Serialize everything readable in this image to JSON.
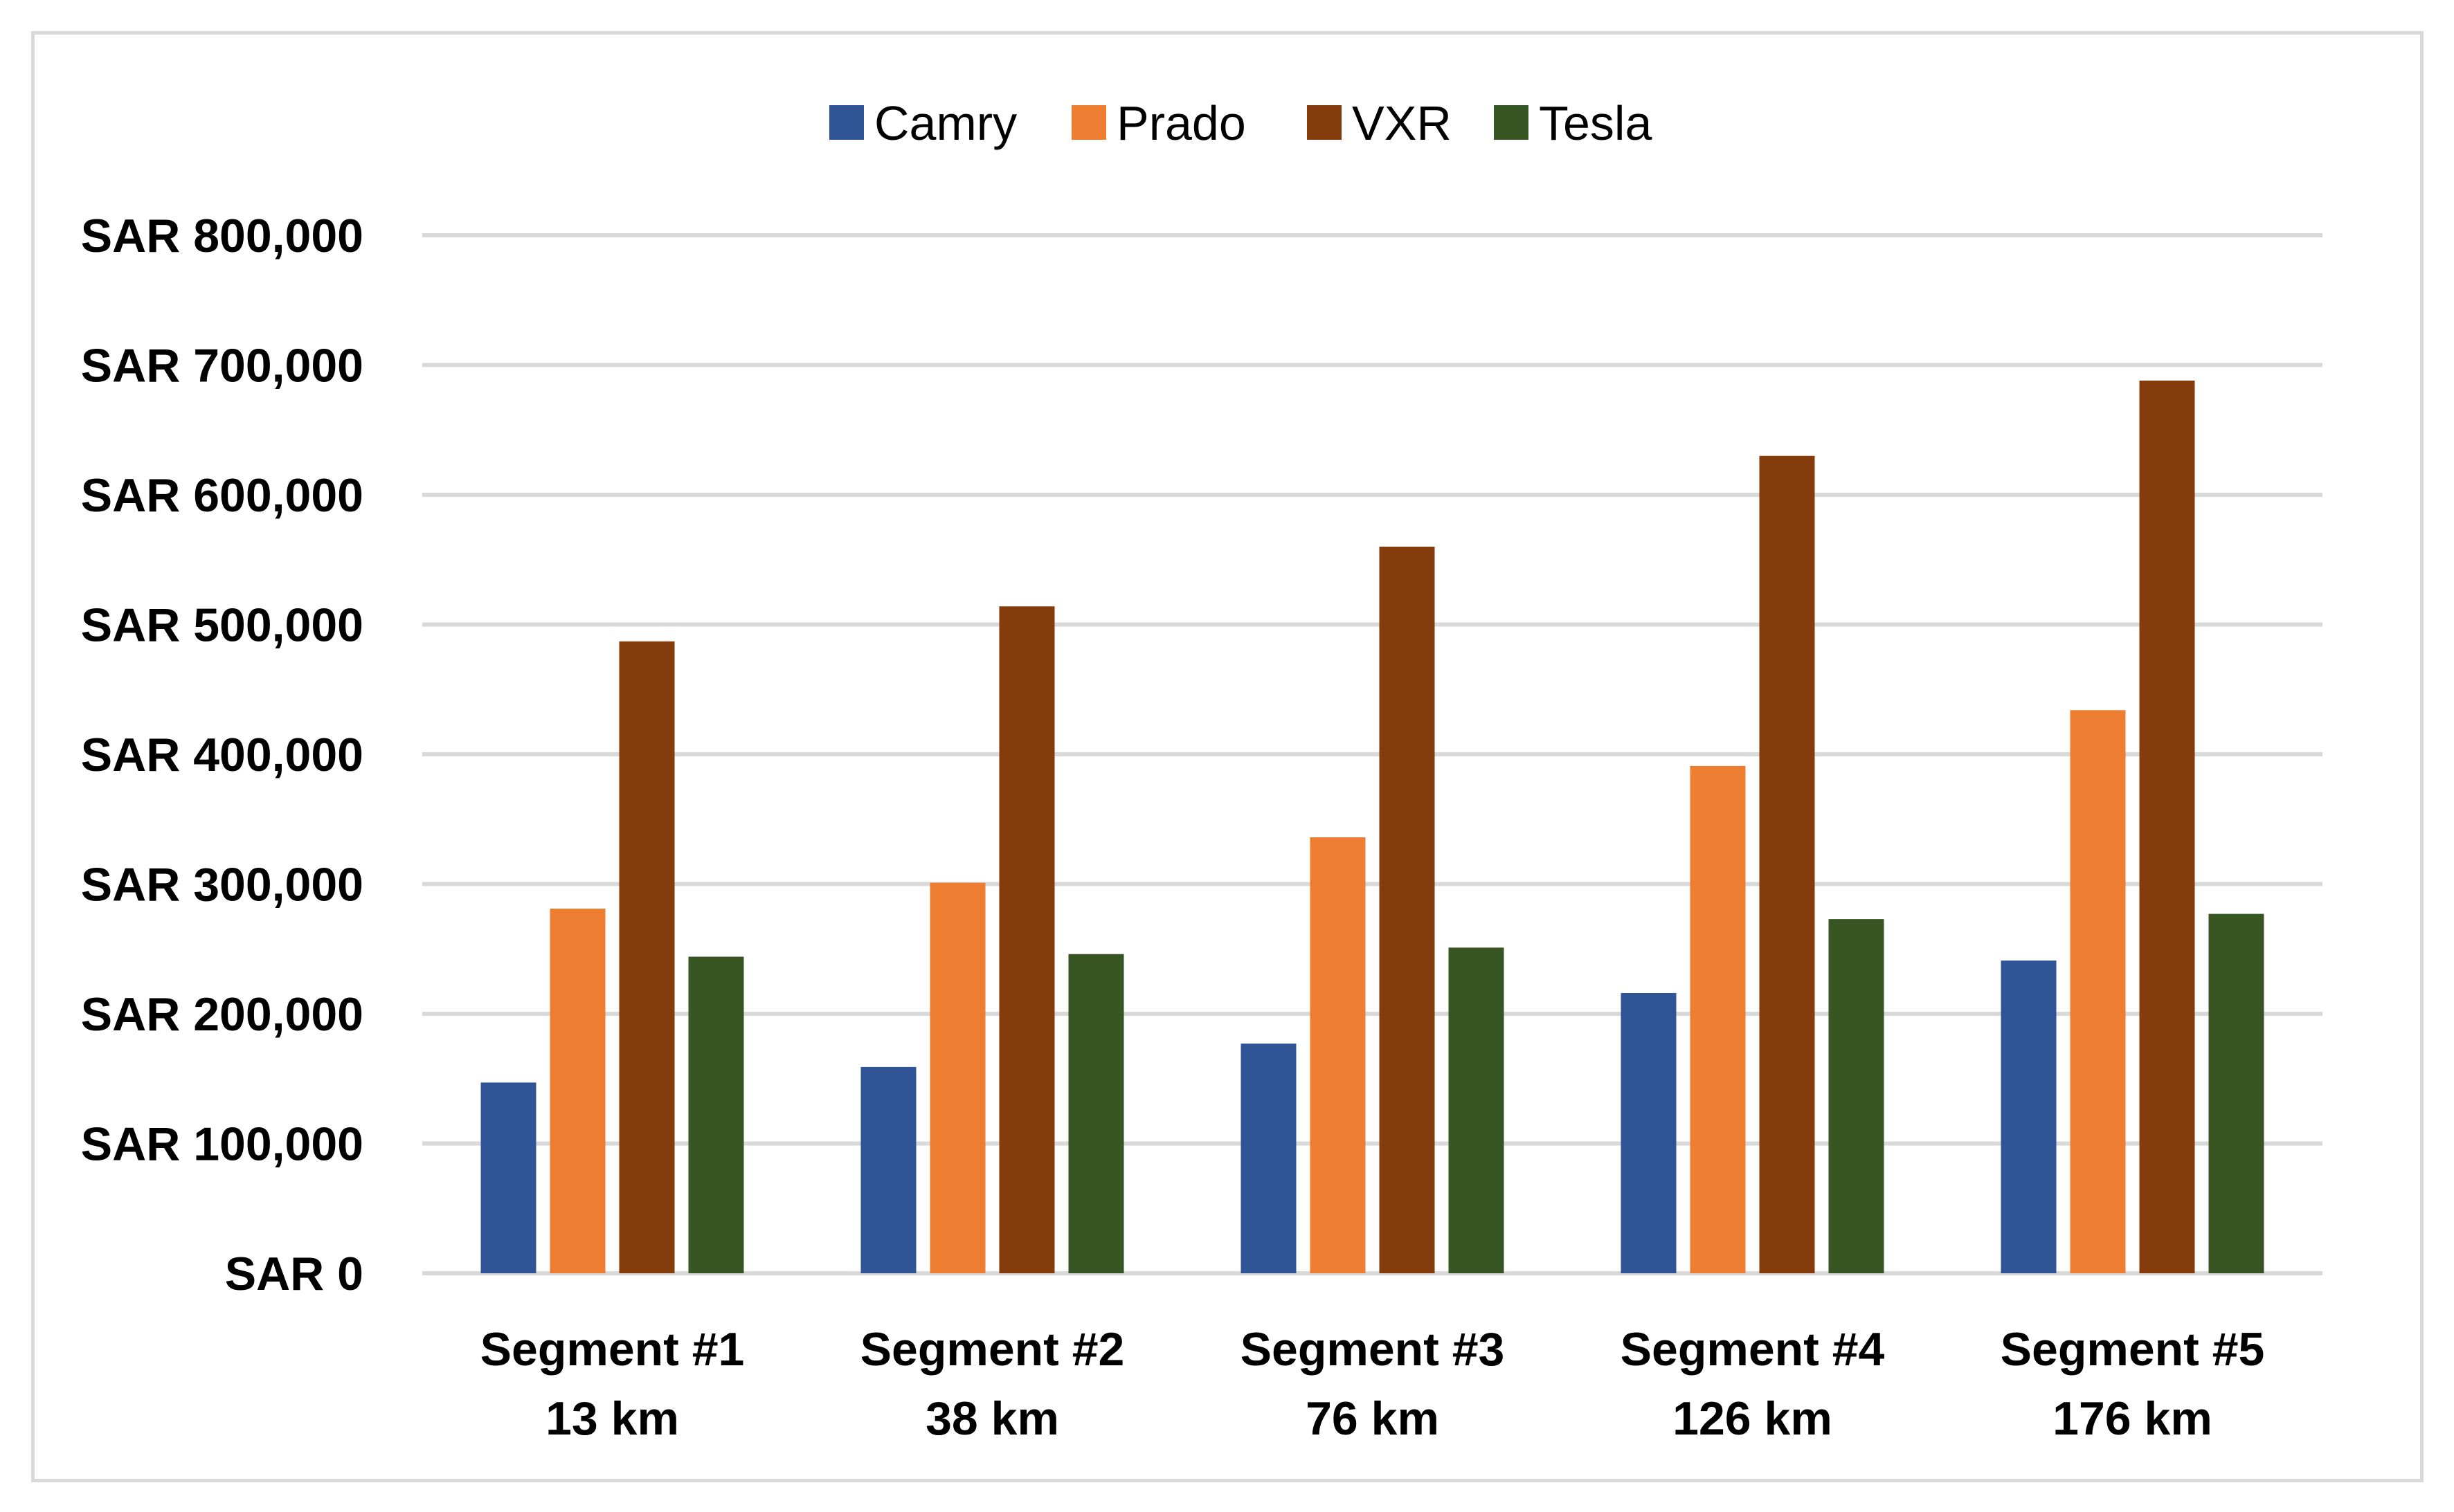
{
  "chart_data": {
    "type": "bar",
    "title": "",
    "xlabel": "",
    "ylabel": "",
    "legend_position": "top",
    "grid": true,
    "ylim": [
      0,
      800000
    ],
    "yticks": [
      0,
      100000,
      200000,
      300000,
      400000,
      500000,
      600000,
      700000,
      800000
    ],
    "ytick_labels": [
      "SAR 0",
      "SAR 100,000",
      "SAR 200,000",
      "SAR 300,000",
      "SAR 400,000",
      "SAR 500,000",
      "SAR 600,000",
      "SAR 700,000",
      "SAR 800,000"
    ],
    "categories": [
      [
        "Segment #1",
        "13 km"
      ],
      [
        "Segment #2",
        "38 km"
      ],
      [
        "Segment #3",
        "76 km"
      ],
      [
        "Segment #4",
        "126 km"
      ],
      [
        "Segment #5",
        "176 km"
      ]
    ],
    "series": [
      {
        "name": "Camry",
        "color": "#2f5597",
        "values": [
          147000,
          159000,
          177000,
          216000,
          241000
        ]
      },
      {
        "name": "Prado",
        "color": "#ed7d31",
        "values": [
          281000,
          301000,
          336000,
          391000,
          434000
        ]
      },
      {
        "name": "VXR",
        "color": "#843c0c",
        "values": [
          487000,
          514000,
          560000,
          630000,
          688000
        ]
      },
      {
        "name": "Tesla",
        "color": "#375623",
        "values": [
          244000,
          246000,
          251000,
          273000,
          277000
        ]
      }
    ]
  }
}
